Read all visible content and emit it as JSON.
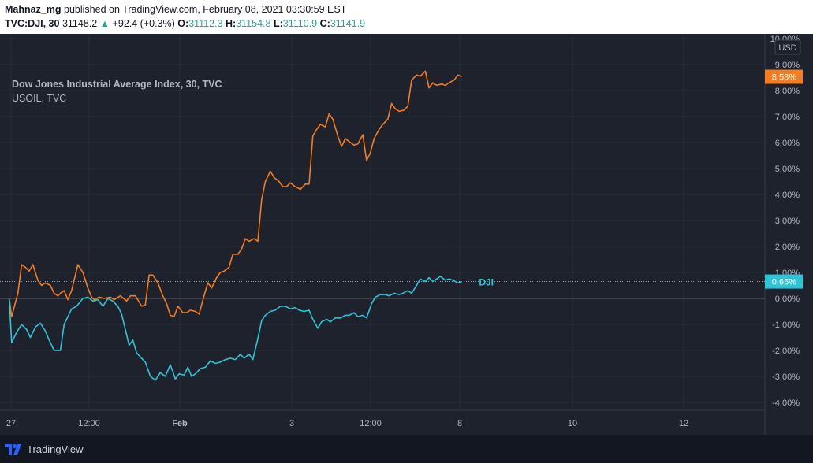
{
  "header": {
    "author": "Mahnaz_mg",
    "published_text": " published on TradingView.com, February 08, 2021 03:30:59 EST",
    "symbol": "TVC:DJI, 30",
    "last": "31148.2",
    "change_arrow": "▲",
    "change": "+92.4 (+0.3%)",
    "o_label": "O:",
    "o_value": "31112.3",
    "h_label": "H:",
    "h_value": "31154.8",
    "l_label": "L:",
    "l_value": "31110.9",
    "c_label": "C:",
    "c_value": "31141.9"
  },
  "legend": {
    "main": "Dow Jones Industrial Average Index, 30, TVC",
    "compare": "USOIL, TVC"
  },
  "footer": {
    "brand": "TradingView"
  },
  "colors": {
    "usoil": "#f57c1f",
    "dji": "#2ec4d8",
    "background": "#1e222d",
    "grid": "#2a2e39",
    "text": "#b2b5be"
  },
  "chart_data": {
    "type": "line",
    "title": "",
    "ylabel_unit": "USD",
    "ylim": [
      -4.3,
      10.1
    ],
    "y_ticks": [
      "10.00%",
      "9.00%",
      "8.00%",
      "7.00%",
      "6.00%",
      "5.00%",
      "4.00%",
      "3.00%",
      "2.00%",
      "1.00%",
      "0.00%",
      "-1.00%",
      "-2.00%",
      "-3.00%",
      "-4.00%"
    ],
    "x_tick_labels": [
      "27",
      "12:00",
      "Feb",
      "3",
      "12:00",
      "8",
      "10",
      "12"
    ],
    "series": [
      {
        "name": "USOIL",
        "last_label": "8.53%",
        "points": [
          [
            0.1,
            0
          ],
          [
            0.3,
            -0.7
          ],
          [
            0.8,
            0.2
          ],
          [
            1.1,
            1.3
          ],
          [
            1.4,
            1.2
          ],
          [
            1.7,
            1.05
          ],
          [
            2.0,
            1.3
          ],
          [
            2.4,
            0.7
          ],
          [
            2.7,
            0.5
          ],
          [
            3.0,
            0.6
          ],
          [
            3.4,
            0.5
          ],
          [
            3.7,
            0.2
          ],
          [
            4.0,
            0.1
          ],
          [
            4.2,
            0.2
          ],
          [
            4.5,
            0.3
          ],
          [
            4.8,
            -0.05
          ],
          [
            5.1,
            0.3
          ],
          [
            5.6,
            1.3
          ],
          [
            6.0,
            1.0
          ],
          [
            6.4,
            0.4
          ],
          [
            6.7,
            0.05
          ],
          [
            6.9,
            -0.05
          ],
          [
            7.3,
            0.05
          ],
          [
            7.7,
            0.0
          ],
          [
            8.2,
            0.05
          ],
          [
            8.5,
            -0.05
          ],
          [
            9.0,
            0.1
          ],
          [
            9.5,
            -0.1
          ],
          [
            9.8,
            0.1
          ],
          [
            10.2,
            0.1
          ],
          [
            10.7,
            -0.3
          ],
          [
            11.0,
            -0.25
          ],
          [
            11.3,
            0.9
          ],
          [
            11.6,
            0.9
          ],
          [
            12.0,
            0.6
          ],
          [
            12.4,
            0.1
          ],
          [
            12.7,
            -0.2
          ],
          [
            13.0,
            -0.65
          ],
          [
            13.3,
            -0.7
          ],
          [
            13.6,
            -0.3
          ],
          [
            14.0,
            -0.55
          ],
          [
            14.3,
            -0.55
          ],
          [
            14.6,
            -0.45
          ],
          [
            15.0,
            -0.5
          ],
          [
            15.3,
            -0.6
          ],
          [
            15.7,
            0.1
          ],
          [
            16.0,
            0.6
          ],
          [
            16.3,
            0.4
          ],
          [
            16.7,
            0.8
          ],
          [
            17.0,
            1.0
          ],
          [
            17.3,
            1.05
          ],
          [
            17.7,
            1.2
          ],
          [
            18.0,
            1.7
          ],
          [
            18.4,
            1.7
          ],
          [
            18.7,
            1.9
          ],
          [
            19.0,
            2.3
          ],
          [
            19.3,
            2.2
          ],
          [
            19.7,
            2.3
          ],
          [
            20.0,
            2.2
          ],
          [
            20.3,
            3.8
          ],
          [
            20.6,
            4.5
          ],
          [
            21.0,
            4.9
          ],
          [
            21.3,
            4.65
          ],
          [
            21.7,
            4.5
          ],
          [
            22.0,
            4.3
          ],
          [
            22.3,
            4.3
          ],
          [
            22.6,
            4.45
          ],
          [
            23.0,
            4.3
          ],
          [
            23.4,
            4.2
          ],
          [
            23.8,
            4.4
          ],
          [
            24.1,
            4.4
          ],
          [
            24.4,
            6.25
          ],
          [
            24.7,
            6.5
          ],
          [
            25.0,
            6.7
          ],
          [
            25.4,
            6.6
          ],
          [
            25.7,
            7.1
          ],
          [
            26.0,
            6.9
          ],
          [
            26.4,
            6.25
          ],
          [
            26.7,
            5.85
          ],
          [
            27.0,
            6.15
          ],
          [
            27.4,
            6.0
          ],
          [
            27.7,
            5.9
          ],
          [
            28.0,
            5.95
          ],
          [
            28.4,
            6.3
          ],
          [
            28.7,
            5.3
          ],
          [
            29.0,
            5.6
          ],
          [
            29.3,
            6.15
          ],
          [
            29.7,
            6.5
          ],
          [
            30.0,
            6.7
          ],
          [
            30.4,
            6.9
          ],
          [
            30.7,
            7.5
          ],
          [
            31.0,
            7.3
          ],
          [
            31.3,
            7.2
          ],
          [
            31.7,
            7.25
          ],
          [
            32.0,
            7.4
          ],
          [
            32.3,
            8.4
          ],
          [
            32.7,
            8.6
          ],
          [
            33.0,
            8.55
          ],
          [
            33.4,
            8.75
          ],
          [
            33.7,
            8.1
          ],
          [
            34.0,
            8.3
          ],
          [
            34.3,
            8.2
          ],
          [
            34.7,
            8.25
          ],
          [
            35.0,
            8.2
          ],
          [
            35.3,
            8.3
          ],
          [
            35.7,
            8.4
          ],
          [
            36.0,
            8.6
          ],
          [
            36.3,
            8.53
          ]
        ]
      },
      {
        "name": "DJI",
        "last_label": "0.65%",
        "points": [
          [
            0.1,
            0
          ],
          [
            0.3,
            -1.7
          ],
          [
            0.7,
            -1.3
          ],
          [
            1.1,
            -1.0
          ],
          [
            1.5,
            -1.2
          ],
          [
            1.8,
            -1.5
          ],
          [
            2.2,
            -1.1
          ],
          [
            2.6,
            -0.95
          ],
          [
            3.0,
            -1.25
          ],
          [
            3.3,
            -1.6
          ],
          [
            3.7,
            -2.0
          ],
          [
            4.2,
            -2.0
          ],
          [
            4.5,
            -1.0
          ],
          [
            4.8,
            -0.7
          ],
          [
            5.1,
            -0.4
          ],
          [
            5.5,
            -0.3
          ],
          [
            6.0,
            0.0
          ],
          [
            6.4,
            0.05
          ],
          [
            6.8,
            -0.1
          ],
          [
            7.2,
            -0.05
          ],
          [
            7.6,
            -0.3
          ],
          [
            8.0,
            0.0
          ],
          [
            8.4,
            -0.1
          ],
          [
            8.8,
            -0.3
          ],
          [
            9.1,
            -0.6
          ],
          [
            9.4,
            -1.2
          ],
          [
            9.7,
            -1.8
          ],
          [
            10.0,
            -1.6
          ],
          [
            10.3,
            -2.1
          ],
          [
            10.6,
            -2.25
          ],
          [
            11.0,
            -2.45
          ],
          [
            11.4,
            -3.0
          ],
          [
            11.8,
            -3.15
          ],
          [
            12.2,
            -2.85
          ],
          [
            12.6,
            -3.0
          ],
          [
            13.0,
            -2.55
          ],
          [
            13.4,
            -3.1
          ],
          [
            13.7,
            -2.9
          ],
          [
            14.1,
            -2.95
          ],
          [
            14.4,
            -2.65
          ],
          [
            14.7,
            -3.0
          ],
          [
            15.0,
            -2.9
          ],
          [
            15.4,
            -2.7
          ],
          [
            15.8,
            -2.65
          ],
          [
            16.2,
            -2.4
          ],
          [
            16.6,
            -2.5
          ],
          [
            17.0,
            -2.45
          ],
          [
            17.4,
            -2.35
          ],
          [
            17.8,
            -2.3
          ],
          [
            18.2,
            -2.35
          ],
          [
            18.6,
            -2.15
          ],
          [
            18.9,
            -2.3
          ],
          [
            19.3,
            -2.15
          ],
          [
            19.6,
            -2.35
          ],
          [
            20.0,
            -1.55
          ],
          [
            20.3,
            -0.85
          ],
          [
            20.6,
            -0.65
          ],
          [
            21.0,
            -0.5
          ],
          [
            21.4,
            -0.45
          ],
          [
            21.8,
            -0.3
          ],
          [
            22.2,
            -0.3
          ],
          [
            22.6,
            -0.4
          ],
          [
            23.0,
            -0.35
          ],
          [
            23.3,
            -0.45
          ],
          [
            23.7,
            -0.5
          ],
          [
            24.1,
            -0.45
          ],
          [
            24.4,
            -0.8
          ],
          [
            24.8,
            -1.15
          ],
          [
            25.1,
            -0.9
          ],
          [
            25.5,
            -0.8
          ],
          [
            25.8,
            -0.9
          ],
          [
            26.2,
            -0.75
          ],
          [
            26.6,
            -0.75
          ],
          [
            27.0,
            -0.65
          ],
          [
            27.3,
            -0.65
          ],
          [
            27.7,
            -0.55
          ],
          [
            28.0,
            -0.7
          ],
          [
            28.4,
            -0.65
          ],
          [
            28.7,
            -0.75
          ],
          [
            29.1,
            -0.2
          ],
          [
            29.4,
            0.05
          ],
          [
            29.8,
            0.15
          ],
          [
            30.2,
            0.15
          ],
          [
            30.5,
            0.1
          ],
          [
            30.9,
            0.2
          ],
          [
            31.3,
            0.15
          ],
          [
            31.6,
            0.2
          ],
          [
            32.0,
            0.3
          ],
          [
            32.3,
            0.2
          ],
          [
            32.7,
            0.5
          ],
          [
            33.0,
            0.75
          ],
          [
            33.4,
            0.65
          ],
          [
            33.7,
            0.8
          ],
          [
            34.0,
            0.65
          ],
          [
            34.3,
            0.75
          ],
          [
            34.6,
            0.85
          ],
          [
            35.0,
            0.7
          ],
          [
            35.3,
            0.75
          ],
          [
            35.6,
            0.7
          ],
          [
            36.0,
            0.6
          ],
          [
            36.3,
            0.65
          ]
        ]
      }
    ]
  }
}
